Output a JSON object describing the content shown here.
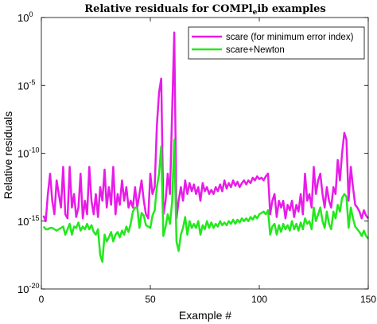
{
  "chart_data": {
    "type": "line",
    "title": "Relative residuals for COMPlₑib examples",
    "title_main": "Relative residuals for COMPl",
    "title_sub": "e",
    "title_rest": "ib examples",
    "xlabel": "Example #",
    "ylabel": "Relative residuals",
    "xlim": [
      0,
      150
    ],
    "ylim": [
      1e-20,
      1
    ],
    "yscale": "log",
    "xticks": [
      0,
      50,
      100,
      150
    ],
    "xtick_labels": [
      "0",
      "50",
      "100",
      "150"
    ],
    "yticks": [
      1e-20,
      1e-15,
      1e-10,
      1e-05,
      1
    ],
    "ytick_labels": [
      {
        "base": "10",
        "exp": "-20"
      },
      {
        "base": "10",
        "exp": "-15"
      },
      {
        "base": "10",
        "exp": "-10"
      },
      {
        "base": "10",
        "exp": "-5"
      },
      {
        "base": "10",
        "exp": "0"
      }
    ],
    "grid": false,
    "legend_position": "top-right",
    "series": [
      {
        "name": "scare (for minimum error index)",
        "color": "#e81ce8",
        "points": [
          [
            1,
            -14.6
          ],
          [
            2,
            -15.0
          ],
          [
            3,
            -13.0
          ],
          [
            4,
            -11.5
          ],
          [
            5,
            -13.5
          ],
          [
            6,
            -14.5
          ],
          [
            7,
            -12.0
          ],
          [
            8,
            -13.0
          ],
          [
            9,
            -14.0
          ],
          [
            10,
            -11.0
          ],
          [
            11,
            -14.5
          ],
          [
            12,
            -14.8
          ],
          [
            13,
            -11.0
          ],
          [
            14,
            -14.0
          ],
          [
            15,
            -13.0
          ],
          [
            16,
            -14.7
          ],
          [
            17,
            -14.0
          ],
          [
            18,
            -11.5
          ],
          [
            19,
            -14.8
          ],
          [
            20,
            -13.5
          ],
          [
            21,
            -14.5
          ],
          [
            22,
            -11.0
          ],
          [
            23,
            -13.5
          ],
          [
            24,
            -14.5
          ],
          [
            25,
            -13.0
          ],
          [
            26,
            -14.7
          ],
          [
            27,
            -12.5
          ],
          [
            28,
            -13.5
          ],
          [
            29,
            -11.2
          ],
          [
            30,
            -14.0
          ],
          [
            31,
            -12.5
          ],
          [
            32,
            -13.8
          ],
          [
            33,
            -11.0
          ],
          [
            34,
            -14.5
          ],
          [
            35,
            -13.0
          ],
          [
            36,
            -13.8
          ],
          [
            37,
            -12.0
          ],
          [
            38,
            -13.5
          ],
          [
            39,
            -12.5
          ],
          [
            40,
            -14.0
          ],
          [
            41,
            -13.5
          ],
          [
            42,
            -14.0
          ],
          [
            43,
            -12.5
          ],
          [
            44,
            -14.0
          ],
          [
            45,
            -13.0
          ],
          [
            46,
            -12.0
          ],
          [
            47,
            -13.5
          ],
          [
            48,
            -14.5
          ],
          [
            49,
            -14.8
          ],
          [
            50,
            -11.5
          ],
          [
            51,
            -13.0
          ],
          [
            52,
            -12.5
          ],
          [
            53,
            -8.0
          ],
          [
            54,
            -5.5
          ],
          [
            55,
            -4.5
          ],
          [
            56,
            -14.5
          ],
          [
            57,
            -13.5
          ],
          [
            58,
            -11.5
          ],
          [
            59,
            -13.0
          ],
          [
            60,
            -7.0
          ],
          [
            61,
            -1.1
          ],
          [
            62,
            -14.8
          ],
          [
            63,
            -13.5
          ],
          [
            64,
            -12.5
          ],
          [
            65,
            -13.5
          ],
          [
            66,
            -12.0
          ],
          [
            67,
            -13.0
          ],
          [
            68,
            -12.2
          ],
          [
            69,
            -12.8
          ],
          [
            70,
            -12.3
          ],
          [
            71,
            -13.0
          ],
          [
            72,
            -12.5
          ],
          [
            73,
            -13.5
          ],
          [
            74,
            -12.2
          ],
          [
            75,
            -12.8
          ],
          [
            76,
            -12.5
          ],
          [
            77,
            -13.0
          ],
          [
            78,
            -12.7
          ],
          [
            79,
            -13.0
          ],
          [
            80,
            -12.5
          ],
          [
            81,
            -12.8
          ],
          [
            82,
            -12.3
          ],
          [
            83,
            -12.8
          ],
          [
            84,
            -12.0
          ],
          [
            85,
            -12.6
          ],
          [
            86,
            -12.2
          ],
          [
            87,
            -12.5
          ],
          [
            88,
            -12.0
          ],
          [
            89,
            -12.4
          ],
          [
            90,
            -12.1
          ],
          [
            91,
            -12.5
          ],
          [
            92,
            -12.2
          ],
          [
            93,
            -12.0
          ],
          [
            94,
            -12.3
          ],
          [
            95,
            -12.0
          ],
          [
            96,
            -12.2
          ],
          [
            97,
            -11.8
          ],
          [
            98,
            -12.0
          ],
          [
            99,
            -11.7
          ],
          [
            100,
            -11.9
          ],
          [
            101,
            -11.8
          ],
          [
            102,
            -12.0
          ],
          [
            103,
            -11.7
          ],
          [
            104,
            -11.5
          ],
          [
            105,
            -14.5
          ],
          [
            106,
            -13.5
          ],
          [
            107,
            -13.0
          ],
          [
            108,
            -14.7
          ],
          [
            109,
            -13.5
          ],
          [
            110,
            -14.0
          ],
          [
            111,
            -13.5
          ],
          [
            112,
            -14.8
          ],
          [
            113,
            -13.8
          ],
          [
            114,
            -14.2
          ],
          [
            115,
            -13.5
          ],
          [
            116,
            -14.7
          ],
          [
            117,
            -13.8
          ],
          [
            118,
            -14.3
          ],
          [
            119,
            -13.0
          ],
          [
            120,
            -14.5
          ],
          [
            121,
            -11.5
          ],
          [
            122,
            -13.5
          ],
          [
            123,
            -13.0
          ],
          [
            124,
            -14.0
          ],
          [
            125,
            -11.0
          ],
          [
            126,
            -13.0
          ],
          [
            127,
            -12.0
          ],
          [
            128,
            -11.5
          ],
          [
            129,
            -13.0
          ],
          [
            130,
            -14.0
          ],
          [
            131,
            -12.5
          ],
          [
            132,
            -13.5
          ],
          [
            133,
            -14.0
          ],
          [
            134,
            -12.5
          ],
          [
            135,
            -13.0
          ],
          [
            136,
            -10.5
          ],
          [
            137,
            -12.0
          ],
          [
            138,
            -10.0
          ],
          [
            139,
            -8.5
          ],
          [
            140,
            -9.0
          ],
          [
            141,
            -13.5
          ],
          [
            142,
            -11.0
          ],
          [
            143,
            -12.5
          ],
          [
            144,
            -13.8
          ],
          [
            145,
            -14.0
          ],
          [
            146,
            -14.3
          ],
          [
            147,
            -14.8
          ],
          [
            148,
            -14.2
          ],
          [
            149,
            -14.6
          ],
          [
            150,
            -14.8
          ]
        ]
      },
      {
        "name": "scare+Newton",
        "color": "#22e81c",
        "points": [
          [
            1,
            -15.4
          ],
          [
            2,
            -15.6
          ],
          [
            3,
            -15.6
          ],
          [
            4,
            -15.5
          ],
          [
            5,
            -15.5
          ],
          [
            6,
            -15.6
          ],
          [
            7,
            -15.7
          ],
          [
            8,
            -15.6
          ],
          [
            9,
            -15.5
          ],
          [
            10,
            -15.4
          ],
          [
            11,
            -16.0
          ],
          [
            12,
            -15.6
          ],
          [
            13,
            -15.2
          ],
          [
            14,
            -16.0
          ],
          [
            15,
            -15.4
          ],
          [
            16,
            -15.5
          ],
          [
            17,
            -15.1
          ],
          [
            18,
            -15.7
          ],
          [
            19,
            -15.4
          ],
          [
            20,
            -15.6
          ],
          [
            21,
            -15.2
          ],
          [
            22,
            -15.6
          ],
          [
            23,
            -15.3
          ],
          [
            24,
            -15.8
          ],
          [
            25,
            -16.0
          ],
          [
            26,
            -15.6
          ],
          [
            27,
            -17.5
          ],
          [
            28,
            -18.0
          ],
          [
            29,
            -16.0
          ],
          [
            30,
            -16.5
          ],
          [
            31,
            -16.2
          ],
          [
            32,
            -15.8
          ],
          [
            33,
            -16.5
          ],
          [
            34,
            -16.0
          ],
          [
            35,
            -15.8
          ],
          [
            36,
            -16.2
          ],
          [
            37,
            -15.7
          ],
          [
            38,
            -16.0
          ],
          [
            39,
            -15.4
          ],
          [
            40,
            -15.8
          ],
          [
            41,
            -15.2
          ],
          [
            42,
            -14.3
          ],
          [
            43,
            -14.0
          ],
          [
            44,
            -14.0
          ],
          [
            45,
            -15.5
          ],
          [
            46,
            -14.4
          ],
          [
            47,
            -14.6
          ],
          [
            48,
            -15.3
          ],
          [
            49,
            -15.4
          ],
          [
            50,
            -15.5
          ],
          [
            51,
            -14.6
          ],
          [
            52,
            -14.2
          ],
          [
            53,
            -12.5
          ],
          [
            54,
            -11.5
          ],
          [
            55,
            -9.5
          ],
          [
            56,
            -16.1
          ],
          [
            57,
            -15.4
          ],
          [
            58,
            -14.5
          ],
          [
            59,
            -15.2
          ],
          [
            60,
            -13.6
          ],
          [
            61,
            -9.0
          ],
          [
            62,
            -16.5
          ],
          [
            63,
            -17.2
          ],
          [
            64,
            -16.0
          ],
          [
            65,
            -15.5
          ],
          [
            66,
            -14.7
          ],
          [
            67,
            -16.0
          ],
          [
            68,
            -15.0
          ],
          [
            69,
            -15.5
          ],
          [
            70,
            -15.2
          ],
          [
            71,
            -15.5
          ],
          [
            72,
            -15.0
          ],
          [
            73,
            -16.0
          ],
          [
            74,
            -15.3
          ],
          [
            75,
            -15.6
          ],
          [
            76,
            -15.0
          ],
          [
            77,
            -15.5
          ],
          [
            78,
            -15.1
          ],
          [
            79,
            -15.5
          ],
          [
            80,
            -15.2
          ],
          [
            81,
            -15.4
          ],
          [
            82,
            -15.0
          ],
          [
            83,
            -15.3
          ],
          [
            84,
            -15.1
          ],
          [
            85,
            -15.3
          ],
          [
            86,
            -15.0
          ],
          [
            87,
            -15.2
          ],
          [
            88,
            -14.9
          ],
          [
            89,
            -15.2
          ],
          [
            90,
            -14.9
          ],
          [
            91,
            -15.1
          ],
          [
            92,
            -14.8
          ],
          [
            93,
            -15.0
          ],
          [
            94,
            -14.8
          ],
          [
            95,
            -15.0
          ],
          [
            96,
            -14.7
          ],
          [
            97,
            -14.9
          ],
          [
            98,
            -14.6
          ],
          [
            99,
            -14.8
          ],
          [
            100,
            -14.5
          ],
          [
            101,
            -14.4
          ],
          [
            102,
            -14.3
          ],
          [
            103,
            -14.5
          ],
          [
            104,
            -14.2
          ],
          [
            105,
            -16.0
          ],
          [
            106,
            -15.4
          ],
          [
            107,
            -15.2
          ],
          [
            108,
            -16.0
          ],
          [
            109,
            -15.3
          ],
          [
            110,
            -15.8
          ],
          [
            111,
            -15.2
          ],
          [
            112,
            -15.6
          ],
          [
            113,
            -15.3
          ],
          [
            114,
            -15.7
          ],
          [
            115,
            -15.0
          ],
          [
            116,
            -15.6
          ],
          [
            117,
            -15.2
          ],
          [
            118,
            -15.7
          ],
          [
            119,
            -15.1
          ],
          [
            120,
            -15.6
          ],
          [
            121,
            -14.8
          ],
          [
            122,
            -15.2
          ],
          [
            123,
            -15.0
          ],
          [
            124,
            -15.6
          ],
          [
            125,
            -14.0
          ],
          [
            126,
            -15.0
          ],
          [
            127,
            -14.5
          ],
          [
            128,
            -14.0
          ],
          [
            129,
            -15.0
          ],
          [
            130,
            -15.5
          ],
          [
            131,
            -14.3
          ],
          [
            132,
            -15.2
          ],
          [
            133,
            -15.6
          ],
          [
            134,
            -14.3
          ],
          [
            135,
            -14.8
          ],
          [
            136,
            -13.8
          ],
          [
            137,
            -14.3
          ],
          [
            138,
            -13.3
          ],
          [
            139,
            -13.0
          ],
          [
            140,
            -13.2
          ],
          [
            141,
            -15.5
          ],
          [
            142,
            -14.0
          ],
          [
            143,
            -14.8
          ],
          [
            144,
            -15.4
          ],
          [
            145,
            -15.6
          ],
          [
            146,
            -15.8
          ],
          [
            147,
            -16.1
          ],
          [
            148,
            -15.7
          ],
          [
            149,
            -16.1
          ],
          [
            150,
            -16.3
          ]
        ]
      }
    ]
  }
}
